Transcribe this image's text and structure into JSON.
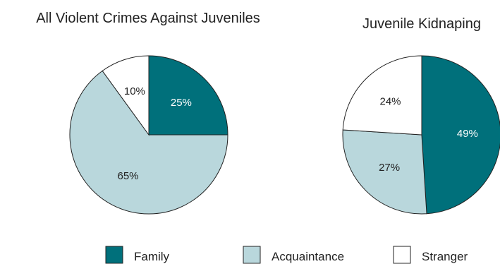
{
  "chart_data": [
    {
      "type": "pie",
      "title": "All Violent Crimes Against Juveniles",
      "slices": [
        {
          "name": "Family",
          "value": 25,
          "label": "25%"
        },
        {
          "name": "Acquaintance",
          "value": 65,
          "label": "65%"
        },
        {
          "name": "Stranger",
          "value": 10,
          "label": "10%"
        }
      ]
    },
    {
      "type": "pie",
      "title": "Juvenile Kidnaping",
      "slices": [
        {
          "name": "Family",
          "value": 49,
          "label": "49%"
        },
        {
          "name": "Acquaintance",
          "value": 27,
          "label": "27%"
        },
        {
          "name": "Stranger",
          "value": 24,
          "label": "24%"
        }
      ]
    }
  ],
  "legend": [
    {
      "name": "Family",
      "color": "#00707b"
    },
    {
      "name": "Acquaintance",
      "color": "#b9d7dc"
    },
    {
      "name": "Stranger",
      "color": "#ffffff"
    }
  ],
  "label_colors": {
    "Family": "#ffffff",
    "Acquaintance": "#222222",
    "Stranger": "#222222"
  },
  "stroke_color": "#222222"
}
